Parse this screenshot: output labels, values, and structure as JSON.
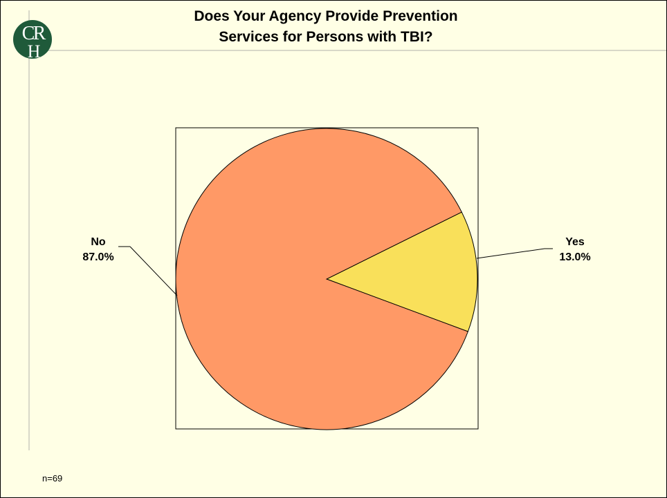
{
  "logo": {
    "letters": "CRH",
    "color": "#1f5a3a"
  },
  "title_lines": [
    "Does Your Agency Provide Prevention",
    "Services for Persons with TBI?"
  ],
  "footnote": "n=69",
  "chart_data": {
    "type": "pie",
    "title": "Does Your Agency Provide Prevention Services for Persons with TBI?",
    "slices": [
      {
        "label": "No",
        "value": 87.0,
        "value_label": "87.0%",
        "color": "#ff9966"
      },
      {
        "label": "Yes",
        "value": 13.0,
        "value_label": "13.0%",
        "color": "#f9e05a"
      }
    ],
    "legend": "none"
  }
}
